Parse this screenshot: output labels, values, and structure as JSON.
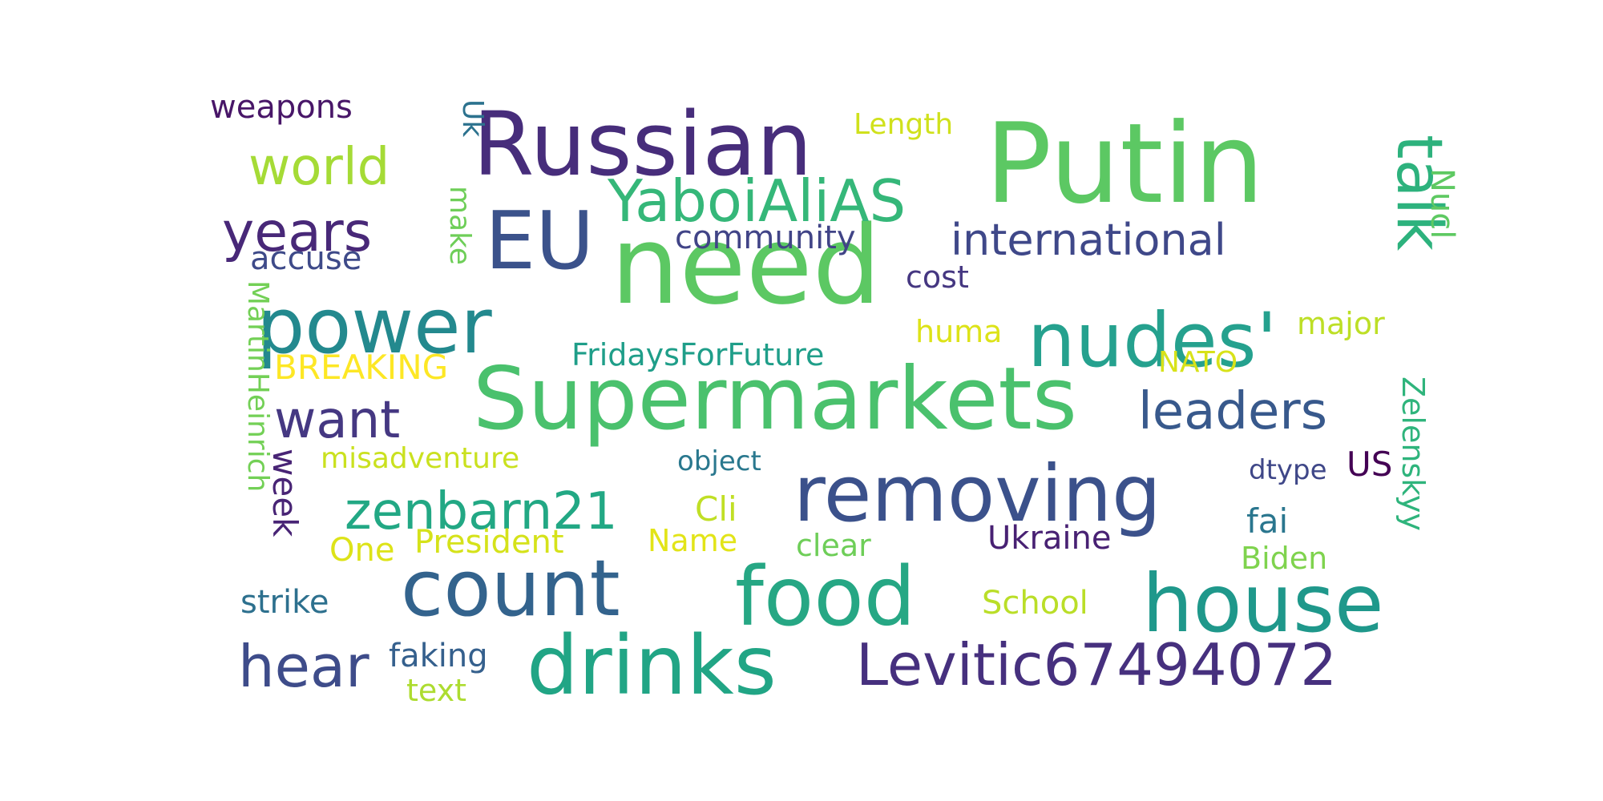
{
  "words": [
    {
      "text": "Putin",
      "color": "#5cc863"
    },
    {
      "text": "need",
      "color": "#5cc863"
    },
    {
      "text": "Russian",
      "color": "#472d7b"
    },
    {
      "text": "Supermarkets",
      "color": "#4ac16d"
    },
    {
      "text": "removing",
      "color": "#3b518b"
    },
    {
      "text": "nudes'",
      "color": "#25a18e"
    },
    {
      "text": "house",
      "color": "#1f988b"
    },
    {
      "text": "food",
      "color": "#26a784"
    },
    {
      "text": "drinks",
      "color": "#21a585"
    },
    {
      "text": "count",
      "color": "#33638d"
    },
    {
      "text": "power",
      "color": "#23898e"
    },
    {
      "text": "EU",
      "color": "#3b528b"
    },
    {
      "text": "Levitic67494072",
      "color": "#46307e"
    },
    {
      "text": "YaboiAliAS",
      "color": "#35b779"
    },
    {
      "text": "leaders",
      "color": "#38598c"
    },
    {
      "text": "zenbarn21",
      "color": "#22a884"
    },
    {
      "text": "talk",
      "color": "#2db27d"
    },
    {
      "text": "world",
      "color": "#a5db36"
    },
    {
      "text": "years",
      "color": "#482878"
    },
    {
      "text": "want",
      "color": "#453882"
    },
    {
      "text": "hear",
      "color": "#3e4c8a"
    },
    {
      "text": "international",
      "color": "#3f4889"
    },
    {
      "text": "weapons",
      "color": "#481668"
    },
    {
      "text": "Length",
      "color": "#d0e11c"
    },
    {
      "text": "Uk",
      "color": "#2c728e"
    },
    {
      "text": "community",
      "color": "#414487"
    },
    {
      "text": "accuse",
      "color": "#3e4a89"
    },
    {
      "text": "make",
      "color": "#6ece58"
    },
    {
      "text": "Nucl",
      "color": "#5ec962"
    },
    {
      "text": "cost",
      "color": "#453781"
    },
    {
      "text": "huma",
      "color": "#dde318"
    },
    {
      "text": "major",
      "color": "#bddf26"
    },
    {
      "text": "FridaysForFuture",
      "color": "#1f9e89"
    },
    {
      "text": "BREAKING",
      "color": "#fde725"
    },
    {
      "text": "NATO",
      "color": "#d8e219"
    },
    {
      "text": "MartinHeinrich",
      "color": "#73d056"
    },
    {
      "text": "misadventure",
      "color": "#cae11f"
    },
    {
      "text": "object",
      "color": "#2a788e"
    },
    {
      "text": "US",
      "color": "#440154"
    },
    {
      "text": "dtype",
      "color": "#3f4788"
    },
    {
      "text": "Zelenskyy",
      "color": "#2fb47c"
    },
    {
      "text": "week",
      "color": "#482475"
    },
    {
      "text": "Cli",
      "color": "#c0df25"
    },
    {
      "text": "fai",
      "color": "#2a768e"
    },
    {
      "text": "Ukraine",
      "color": "#482173"
    },
    {
      "text": "One",
      "color": "#dde318"
    },
    {
      "text": "President",
      "color": "#d5e21a"
    },
    {
      "text": "Name",
      "color": "#e2e418"
    },
    {
      "text": "clear",
      "color": "#6ece58"
    },
    {
      "text": "Biden",
      "color": "#7fd34e"
    },
    {
      "text": "strike",
      "color": "#2d708e"
    },
    {
      "text": "School",
      "color": "#bade28"
    },
    {
      "text": "faking",
      "color": "#35608d"
    },
    {
      "text": "text",
      "color": "#addc30"
    }
  ]
}
